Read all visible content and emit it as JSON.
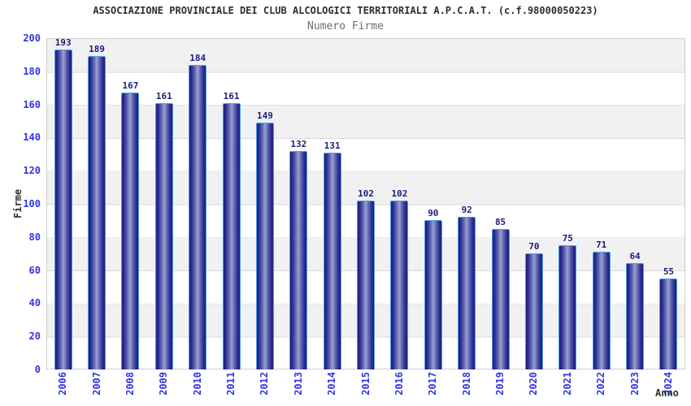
{
  "header": {
    "title": "ASSOCIAZIONE PROVINCIALE DEI CLUB ALCOLOGICI TERRITORIALI A.P.C.A.T. (c.f.98000050223)",
    "subtitle": "Numero Firme"
  },
  "chart_data": {
    "type": "bar",
    "title": "ASSOCIAZIONE PROVINCIALE DEI CLUB ALCOLOGICI TERRITORIALI A.P.C.A.T. (c.f.98000050223)",
    "subtitle": "Numero Firme",
    "xlabel": "Anno",
    "ylabel": "Firme",
    "categories": [
      "2006",
      "2007",
      "2008",
      "2009",
      "2010",
      "2011",
      "2012",
      "2013",
      "2014",
      "2015",
      "2016",
      "2017",
      "2018",
      "2019",
      "2020",
      "2021",
      "2022",
      "2023",
      "2024"
    ],
    "values": [
      193,
      189,
      167,
      161,
      184,
      161,
      149,
      132,
      131,
      102,
      102,
      90,
      92,
      85,
      70,
      75,
      71,
      64,
      55
    ],
    "ylim": [
      0,
      200
    ],
    "yticks": [
      0,
      20,
      40,
      60,
      80,
      100,
      120,
      140,
      160,
      180,
      200
    ],
    "grid": "horizontal gridlines every 20 with alternating gray/white bands",
    "legend": "none",
    "bar_labels": "values shown above each bar",
    "x_tick_rotation": "vertical (reading bottom to top)",
    "colors": {
      "bar_edge_dark": "#1d1d85",
      "bar_center_light": "#9aa0d2",
      "bar_border": "#4aa2e8",
      "value_label": "#1c1c7d",
      "tick_label_blue": "#3333e6",
      "band_gray": "#f1f1f1",
      "gridline": "#d9d9d9",
      "title_color": "#2e2e2e",
      "subtitle_color": "#6e6e6e",
      "background": "#ffffff"
    }
  }
}
